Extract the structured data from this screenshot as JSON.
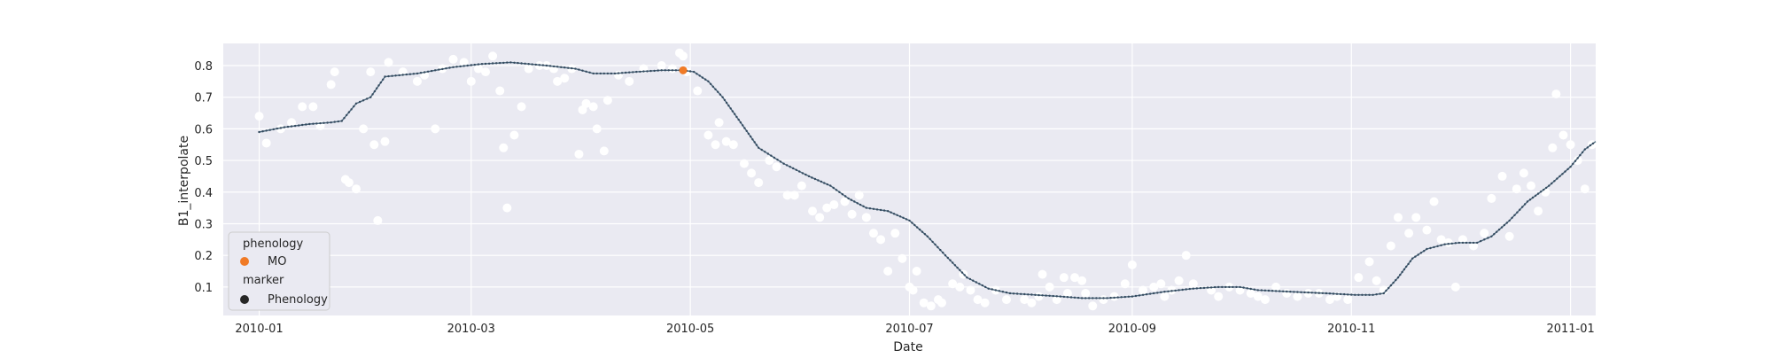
{
  "chart_data": {
    "type": "scatter",
    "xlabel": "Date",
    "ylabel": "B1_interpolate",
    "x_range": [
      "2009-12-22",
      "2011-01-08"
    ],
    "ylim": [
      0.01,
      0.87
    ],
    "x_ticks": [
      "2010-01",
      "2010-03",
      "2010-05",
      "2010-07",
      "2010-09",
      "2010-11",
      "2011-01"
    ],
    "y_ticks": [
      0.1,
      0.2,
      0.3,
      0.4,
      0.5,
      0.6,
      0.7,
      0.8
    ],
    "y_tick_labels": [
      "0.1",
      "0.2",
      "0.3",
      "0.4",
      "0.5",
      "0.6",
      "0.7",
      "0.8"
    ],
    "grid": true,
    "legend_position": "lower-left",
    "colors": {
      "background": "#eaeaf2",
      "grid": "#ffffff",
      "raw_points": "#ffffff",
      "smoothed_line": "#4c6a7e",
      "smoothed_points": "#34495e",
      "phenology": "#f07a26",
      "marker_legend": "#262626"
    },
    "legend": {
      "hue_title": "phenology",
      "hue_entries": [
        {
          "label": "MO",
          "color": "#f07a26"
        }
      ],
      "style_title": "marker",
      "style_entries": [
        {
          "label": "Phenology",
          "color": "#262626"
        }
      ]
    },
    "series": [
      {
        "role": "raw-observations",
        "points": [
          [
            "2010-01-01",
            0.64
          ],
          [
            "2010-01-03",
            0.555
          ],
          [
            "2010-01-07",
            0.6
          ],
          [
            "2010-01-10",
            0.62
          ],
          [
            "2010-01-13",
            0.67
          ],
          [
            "2010-01-16",
            0.67
          ],
          [
            "2010-01-18",
            0.61
          ],
          [
            "2010-01-21",
            0.74
          ],
          [
            "2010-01-22",
            0.78
          ],
          [
            "2010-01-25",
            0.44
          ],
          [
            "2010-01-26",
            0.43
          ],
          [
            "2010-01-28",
            0.41
          ],
          [
            "2010-01-30",
            0.6
          ],
          [
            "2010-02-01",
            0.78
          ],
          [
            "2010-02-02",
            0.55
          ],
          [
            "2010-02-03",
            0.31
          ],
          [
            "2010-02-05",
            0.56
          ],
          [
            "2010-02-06",
            0.81
          ],
          [
            "2010-02-10",
            0.78
          ],
          [
            "2010-02-14",
            0.75
          ],
          [
            "2010-02-16",
            0.77
          ],
          [
            "2010-02-19",
            0.6
          ],
          [
            "2010-02-21",
            0.79
          ],
          [
            "2010-02-24",
            0.82
          ],
          [
            "2010-02-27",
            0.81
          ],
          [
            "2010-03-01",
            0.75
          ],
          [
            "2010-03-03",
            0.79
          ],
          [
            "2010-03-05",
            0.78
          ],
          [
            "2010-03-07",
            0.83
          ],
          [
            "2010-03-09",
            0.72
          ],
          [
            "2010-03-10",
            0.54
          ],
          [
            "2010-03-11",
            0.35
          ],
          [
            "2010-03-13",
            0.58
          ],
          [
            "2010-03-15",
            0.67
          ],
          [
            "2010-03-17",
            0.79
          ],
          [
            "2010-03-20",
            0.8
          ],
          [
            "2010-03-22",
            0.8
          ],
          [
            "2010-03-24",
            0.79
          ],
          [
            "2010-03-25",
            0.75
          ],
          [
            "2010-03-27",
            0.76
          ],
          [
            "2010-03-29",
            0.79
          ],
          [
            "2010-03-31",
            0.52
          ],
          [
            "2010-04-01",
            0.66
          ],
          [
            "2010-04-02",
            0.68
          ],
          [
            "2010-04-04",
            0.67
          ],
          [
            "2010-04-05",
            0.6
          ],
          [
            "2010-04-07",
            0.53
          ],
          [
            "2010-04-08",
            0.69
          ],
          [
            "2010-04-11",
            0.77
          ],
          [
            "2010-04-14",
            0.75
          ],
          [
            "2010-04-18",
            0.79
          ],
          [
            "2010-04-23",
            0.8
          ],
          [
            "2010-04-26",
            0.79
          ],
          [
            "2010-04-28",
            0.84
          ],
          [
            "2010-04-29",
            0.83
          ],
          [
            "2010-04-30",
            0.78
          ],
          [
            "2010-05-03",
            0.72
          ],
          [
            "2010-05-06",
            0.58
          ],
          [
            "2010-05-08",
            0.55
          ],
          [
            "2010-05-09",
            0.62
          ],
          [
            "2010-05-11",
            0.56
          ],
          [
            "2010-05-13",
            0.55
          ],
          [
            "2010-05-16",
            0.49
          ],
          [
            "2010-05-18",
            0.46
          ],
          [
            "2010-05-20",
            0.43
          ],
          [
            "2010-05-23",
            0.5
          ],
          [
            "2010-05-25",
            0.48
          ],
          [
            "2010-05-28",
            0.39
          ],
          [
            "2010-05-30",
            0.39
          ],
          [
            "2010-06-01",
            0.42
          ],
          [
            "2010-06-04",
            0.34
          ],
          [
            "2010-06-06",
            0.32
          ],
          [
            "2010-06-08",
            0.35
          ],
          [
            "2010-06-10",
            0.36
          ],
          [
            "2010-06-13",
            0.37
          ],
          [
            "2010-06-15",
            0.33
          ],
          [
            "2010-06-17",
            0.39
          ],
          [
            "2010-06-19",
            0.32
          ],
          [
            "2010-06-21",
            0.27
          ],
          [
            "2010-06-23",
            0.25
          ],
          [
            "2010-06-25",
            0.15
          ],
          [
            "2010-06-27",
            0.27
          ],
          [
            "2010-06-29",
            0.19
          ],
          [
            "2010-07-01",
            0.1
          ],
          [
            "2010-07-02",
            0.09
          ],
          [
            "2010-07-03",
            0.15
          ],
          [
            "2010-07-05",
            0.05
          ],
          [
            "2010-07-07",
            0.04
          ],
          [
            "2010-07-09",
            0.06
          ],
          [
            "2010-07-10",
            0.05
          ],
          [
            "2010-07-13",
            0.11
          ],
          [
            "2010-07-15",
            0.1
          ],
          [
            "2010-07-16",
            0.14
          ],
          [
            "2010-07-18",
            0.09
          ],
          [
            "2010-07-20",
            0.06
          ],
          [
            "2010-07-22",
            0.05
          ],
          [
            "2010-07-25",
            0.09
          ],
          [
            "2010-07-28",
            0.06
          ],
          [
            "2010-08-02",
            0.06
          ],
          [
            "2010-08-04",
            0.05
          ],
          [
            "2010-08-06",
            0.07
          ],
          [
            "2010-08-07",
            0.14
          ],
          [
            "2010-08-09",
            0.1
          ],
          [
            "2010-08-11",
            0.06
          ],
          [
            "2010-08-13",
            0.13
          ],
          [
            "2010-08-14",
            0.08
          ],
          [
            "2010-08-16",
            0.13
          ],
          [
            "2010-08-18",
            0.12
          ],
          [
            "2010-08-19",
            0.08
          ],
          [
            "2010-08-21",
            0.04
          ],
          [
            "2010-08-24",
            0.06
          ],
          [
            "2010-08-27",
            0.07
          ],
          [
            "2010-08-30",
            0.11
          ],
          [
            "2010-09-01",
            0.17
          ],
          [
            "2010-09-04",
            0.09
          ],
          [
            "2010-09-07",
            0.1
          ],
          [
            "2010-09-09",
            0.11
          ],
          [
            "2010-09-10",
            0.07
          ],
          [
            "2010-09-12",
            0.09
          ],
          [
            "2010-09-14",
            0.12
          ],
          [
            "2010-09-16",
            0.2
          ],
          [
            "2010-09-18",
            0.11
          ],
          [
            "2010-09-23",
            0.09
          ],
          [
            "2010-09-25",
            0.07
          ],
          [
            "2010-09-28",
            0.1
          ],
          [
            "2010-10-01",
            0.09
          ],
          [
            "2010-10-04",
            0.08
          ],
          [
            "2010-10-06",
            0.07
          ],
          [
            "2010-10-08",
            0.06
          ],
          [
            "2010-10-11",
            0.1
          ],
          [
            "2010-10-14",
            0.08
          ],
          [
            "2010-10-17",
            0.07
          ],
          [
            "2010-10-20",
            0.08
          ],
          [
            "2010-10-23",
            0.08
          ],
          [
            "2010-10-26",
            0.06
          ],
          [
            "2010-10-28",
            0.07
          ],
          [
            "2010-10-31",
            0.06
          ],
          [
            "2010-11-03",
            0.13
          ],
          [
            "2010-11-06",
            0.18
          ],
          [
            "2010-11-08",
            0.12
          ],
          [
            "2010-11-10",
            0.09
          ],
          [
            "2010-11-12",
            0.23
          ],
          [
            "2010-11-14",
            0.32
          ],
          [
            "2010-11-17",
            0.27
          ],
          [
            "2010-11-19",
            0.32
          ],
          [
            "2010-11-22",
            0.28
          ],
          [
            "2010-11-24",
            0.37
          ],
          [
            "2010-11-26",
            0.25
          ],
          [
            "2010-11-28",
            0.24
          ],
          [
            "2010-11-30",
            0.1
          ],
          [
            "2010-12-02",
            0.25
          ],
          [
            "2010-12-05",
            0.23
          ],
          [
            "2010-12-08",
            0.27
          ],
          [
            "2010-12-10",
            0.38
          ],
          [
            "2010-12-13",
            0.45
          ],
          [
            "2010-12-15",
            0.26
          ],
          [
            "2010-12-17",
            0.41
          ],
          [
            "2010-12-19",
            0.46
          ],
          [
            "2010-12-21",
            0.42
          ],
          [
            "2010-12-23",
            0.34
          ],
          [
            "2010-12-25",
            0.4
          ],
          [
            "2010-12-27",
            0.54
          ],
          [
            "2010-12-28",
            0.71
          ],
          [
            "2010-12-30",
            0.58
          ],
          [
            "2011-01-01",
            0.55
          ],
          [
            "2011-01-03",
            0.5
          ],
          [
            "2011-01-05",
            0.41
          ],
          [
            "2011-01-07",
            0.55
          ]
        ]
      },
      {
        "role": "smoothed-curve",
        "points": [
          [
            "2010-01-01",
            0.59
          ],
          [
            "2010-01-08",
            0.605
          ],
          [
            "2010-01-15",
            0.615
          ],
          [
            "2010-01-21",
            0.62
          ],
          [
            "2010-01-24",
            0.625
          ],
          [
            "2010-01-28",
            0.68
          ],
          [
            "2010-02-01",
            0.7
          ],
          [
            "2010-02-05",
            0.765
          ],
          [
            "2010-02-14",
            0.775
          ],
          [
            "2010-02-24",
            0.795
          ],
          [
            "2010-03-04",
            0.805
          ],
          [
            "2010-03-12",
            0.81
          ],
          [
            "2010-03-22",
            0.8
          ],
          [
            "2010-03-30",
            0.79
          ],
          [
            "2010-04-04",
            0.775
          ],
          [
            "2010-04-10",
            0.775
          ],
          [
            "2010-04-16",
            0.78
          ],
          [
            "2010-04-23",
            0.785
          ],
          [
            "2010-04-29",
            0.785
          ],
          [
            "2010-05-02",
            0.78
          ],
          [
            "2010-05-06",
            0.75
          ],
          [
            "2010-05-10",
            0.7
          ],
          [
            "2010-05-15",
            0.62
          ],
          [
            "2010-05-20",
            0.54
          ],
          [
            "2010-05-27",
            0.49
          ],
          [
            "2010-06-03",
            0.45
          ],
          [
            "2010-06-09",
            0.42
          ],
          [
            "2010-06-14",
            0.38
          ],
          [
            "2010-06-19",
            0.35
          ],
          [
            "2010-06-25",
            0.34
          ],
          [
            "2010-07-01",
            0.31
          ],
          [
            "2010-07-06",
            0.26
          ],
          [
            "2010-07-11",
            0.2
          ],
          [
            "2010-07-17",
            0.13
          ],
          [
            "2010-07-23",
            0.095
          ],
          [
            "2010-07-29",
            0.08
          ],
          [
            "2010-08-05",
            0.075
          ],
          [
            "2010-08-12",
            0.07
          ],
          [
            "2010-08-18",
            0.065
          ],
          [
            "2010-08-25",
            0.065
          ],
          [
            "2010-09-01",
            0.07
          ],
          [
            "2010-09-10",
            0.085
          ],
          [
            "2010-09-18",
            0.095
          ],
          [
            "2010-09-25",
            0.1
          ],
          [
            "2010-10-01",
            0.1
          ],
          [
            "2010-10-06",
            0.09
          ],
          [
            "2010-10-15",
            0.085
          ],
          [
            "2010-10-25",
            0.08
          ],
          [
            "2010-11-02",
            0.075
          ],
          [
            "2010-11-07",
            0.075
          ],
          [
            "2010-11-10",
            0.08
          ],
          [
            "2010-11-14",
            0.13
          ],
          [
            "2010-11-18",
            0.19
          ],
          [
            "2010-11-22",
            0.22
          ],
          [
            "2010-11-27",
            0.235
          ],
          [
            "2010-12-01",
            0.24
          ],
          [
            "2010-12-06",
            0.24
          ],
          [
            "2010-12-10",
            0.26
          ],
          [
            "2010-12-15",
            0.31
          ],
          [
            "2010-12-20",
            0.37
          ],
          [
            "2010-12-26",
            0.42
          ],
          [
            "2011-01-01",
            0.48
          ],
          [
            "2011-01-05",
            0.535
          ],
          [
            "2011-01-08",
            0.56
          ]
        ]
      },
      {
        "role": "phenology-point",
        "name": "MO",
        "points": [
          [
            "2010-04-29",
            0.785
          ]
        ]
      }
    ]
  }
}
